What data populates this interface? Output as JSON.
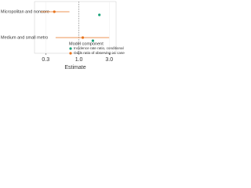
{
  "chart_data": {
    "type": "forest",
    "categories": [
      "Micropolitan and noncore",
      "Medium and small metro"
    ],
    "x_label": "Estimate",
    "log_x": true,
    "xlim": [
      0.2,
      3.85
    ],
    "xticks": [
      0.3,
      {
        "value": 1,
        "label": "1.0"
      },
      {
        "value": 3,
        "label": "3.0"
      }
    ],
    "reference_line": 1,
    "legend_title": "Model component",
    "legend_position": "bottom-right",
    "series": [
      {
        "name": "Incidence rate ratio, conditional",
        "color": "#1aa37a",
        "values": [
          2.1,
          1.66
        ]
      },
      {
        "name": "Odds ratio of observing ≥1 case",
        "color": "#e8731c",
        "values": [
          0.41,
          1.15
        ],
        "lower": [
          0.25,
          0.43
        ],
        "upper": [
          0.71,
          3.0
        ]
      }
    ]
  }
}
